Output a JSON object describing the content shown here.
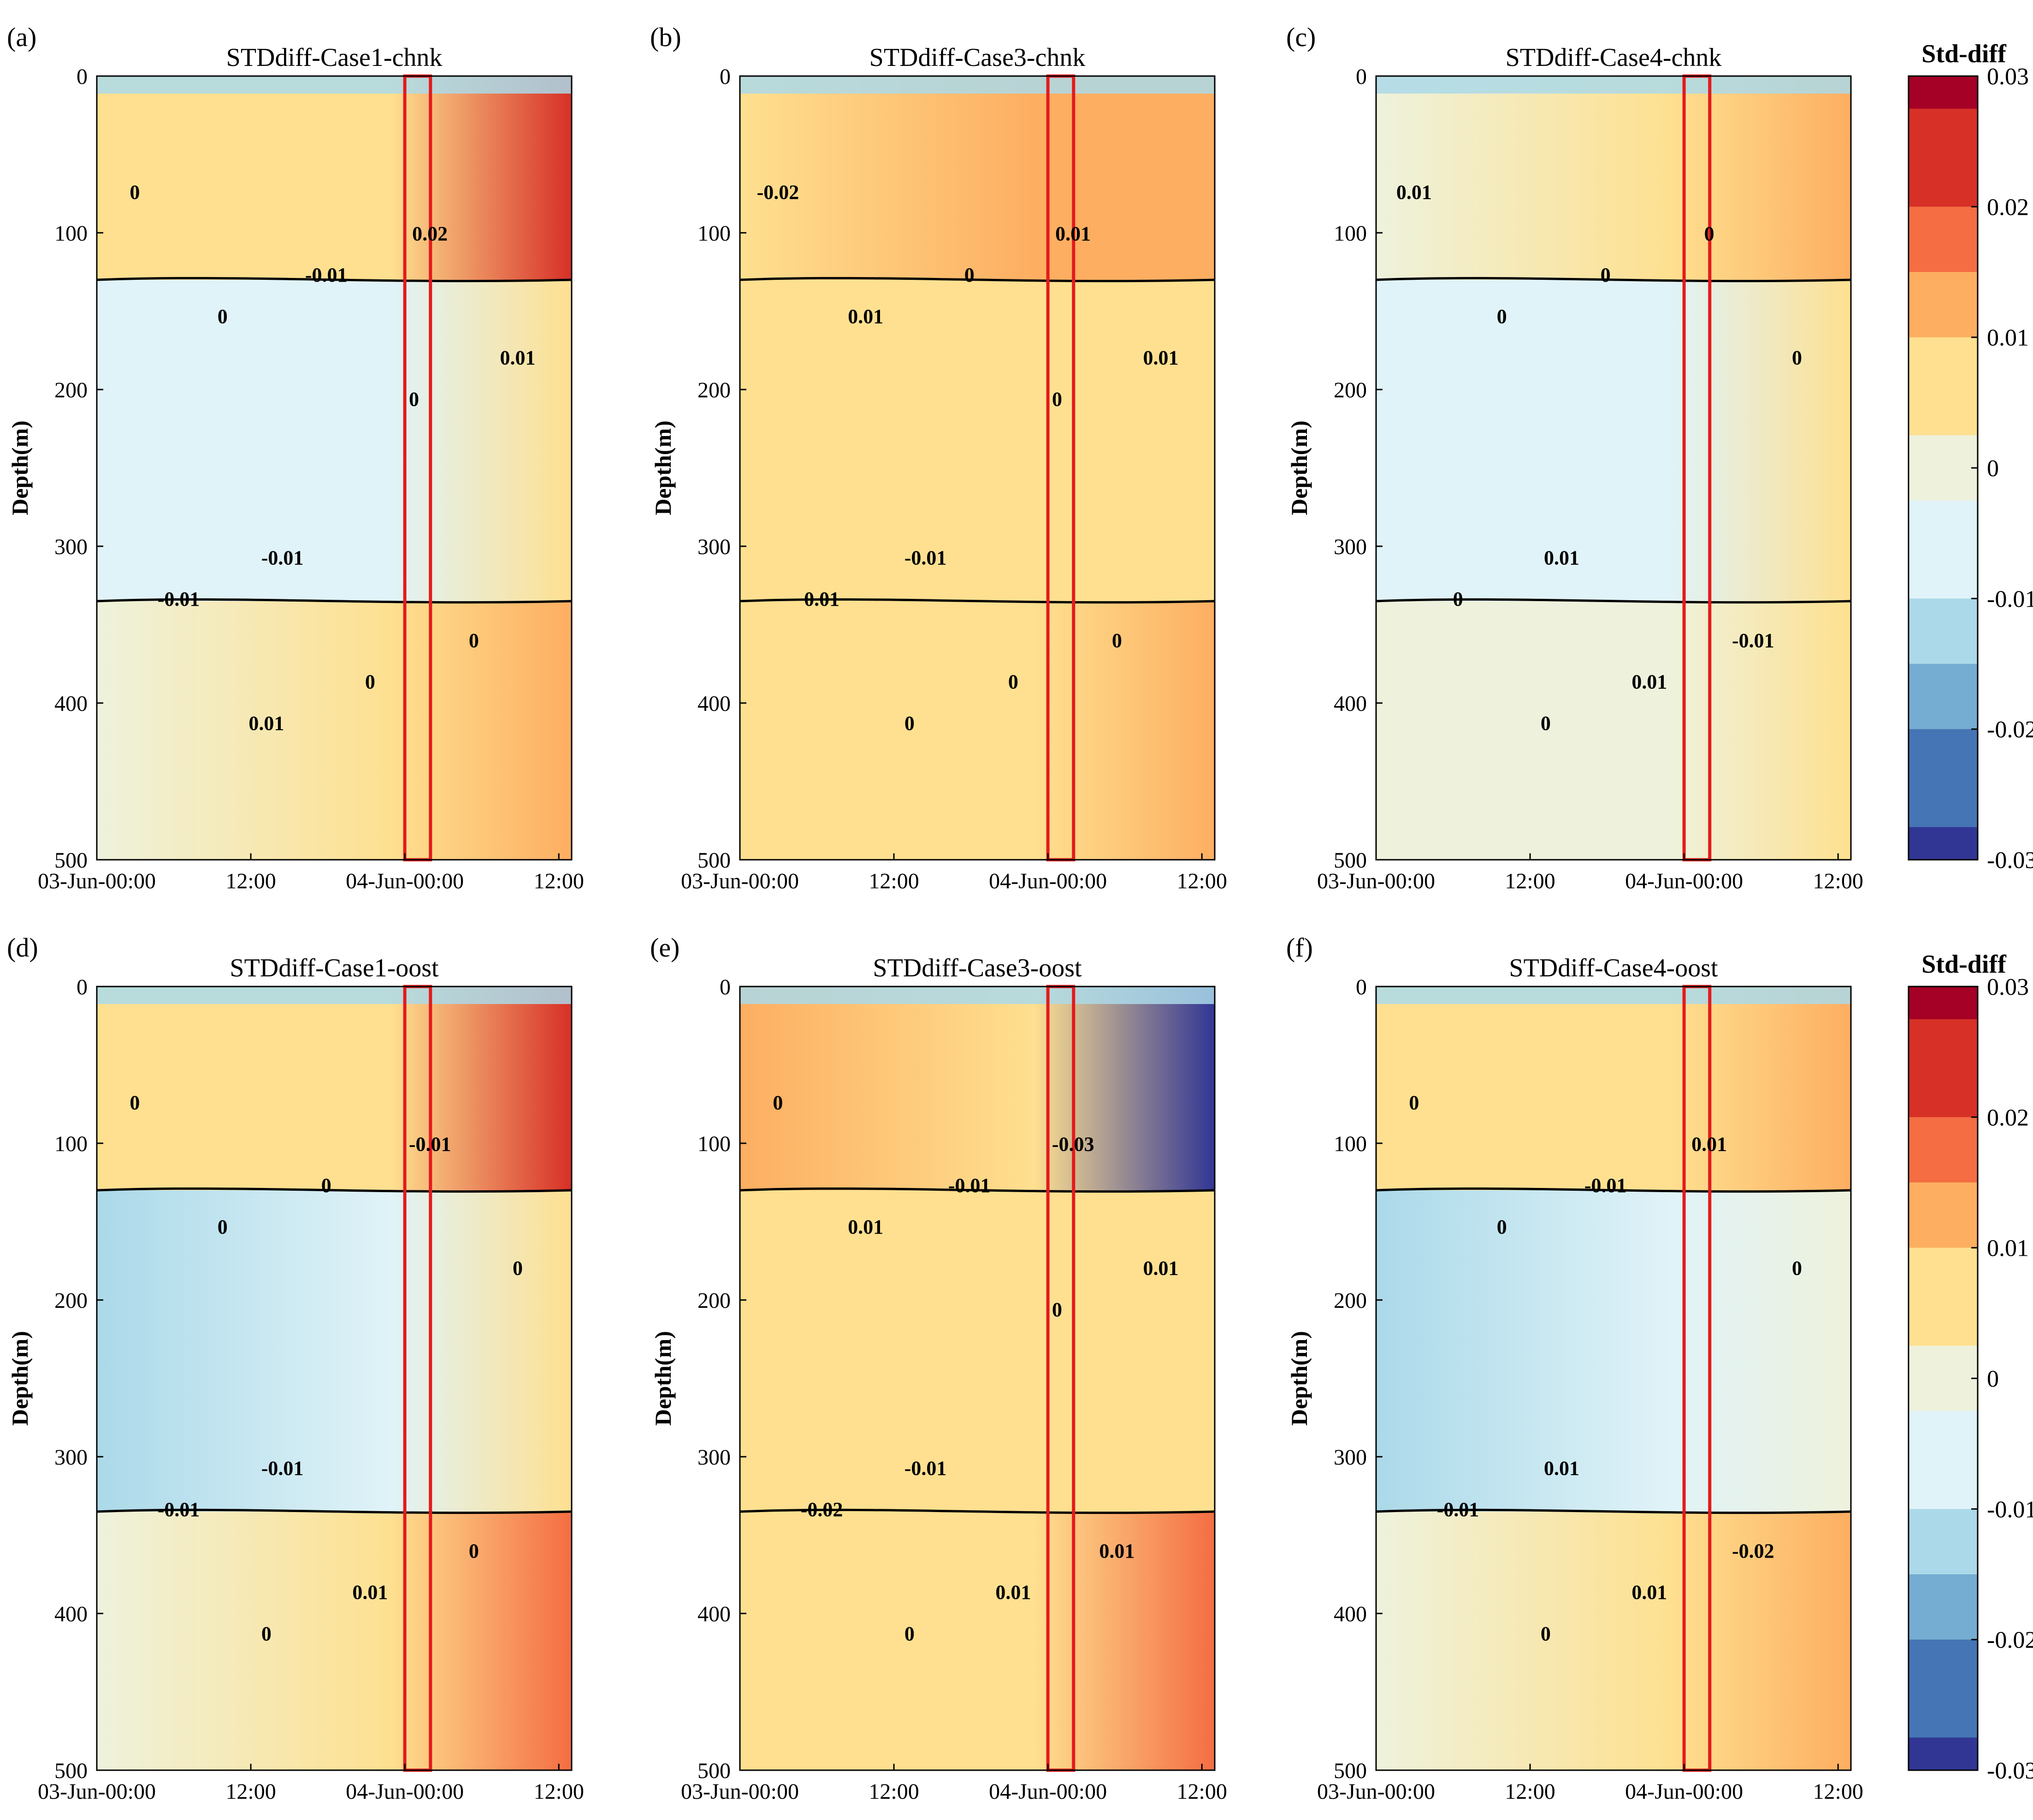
{
  "figure": {
    "colorbar_label": "Std-diff",
    "colorbar_ticks": [
      "0.03",
      "0.02",
      "0.01",
      "0",
      "-0.01",
      "-0.02",
      "-0.03"
    ],
    "ylabel": "Depth(m)",
    "highlight_color": "#e41a1c",
    "colormap": [
      "#313695",
      "#4575b4",
      "#74add1",
      "#abd9e9",
      "#e0f3f8",
      "#eef2dc",
      "#fee090",
      "#fdae61",
      "#f46d43",
      "#d73027",
      "#a50026"
    ]
  },
  "chart_data": [
    {
      "panel_letter": "(a)",
      "title": "STDdiff-Case1-chnk",
      "type": "heatmap",
      "xlabel": "",
      "ylabel": "Depth(m)",
      "x_ticks": [
        "03-Jun-00:00",
        "12:00",
        "04-Jun-00:00",
        "12:00"
      ],
      "y_ticks": [
        "0",
        "100",
        "200",
        "300",
        "400",
        "500"
      ],
      "ylim": [
        0,
        500
      ],
      "colorbar": {
        "label": "Std-diff",
        "range": [
          -0.03,
          0.03
        ]
      },
      "contour_labels": [
        "0",
        "-0.01",
        "0.02",
        "-0.01",
        "-0.01",
        "0",
        "0",
        "0",
        "0.01",
        "0.01",
        "0"
      ],
      "highlight_window": [
        "04-Jun-00:00",
        "04-Jun-02:00"
      ],
      "bands": [
        {
          "depth": [
            0,
            130
          ],
          "left": 0.003,
          "right": 0.022
        },
        {
          "depth": [
            130,
            335
          ],
          "left": -0.009,
          "right": 0.004
        },
        {
          "depth": [
            335,
            500
          ],
          "left": 0.001,
          "right": 0.014
        }
      ]
    },
    {
      "panel_letter": "(b)",
      "title": "STDdiff-Case3-chnk",
      "type": "heatmap",
      "xlabel": "",
      "ylabel": "Depth(m)",
      "x_ticks": [
        "03-Jun-00:00",
        "12:00",
        "04-Jun-00:00",
        "12:00"
      ],
      "y_ticks": [
        "0",
        "100",
        "200",
        "300",
        "400",
        "500"
      ],
      "ylim": [
        0,
        500
      ],
      "colorbar": {
        "label": "Std-diff",
        "range": [
          -0.03,
          0.03
        ]
      },
      "contour_labels": [
        "-0.02",
        "-0.01",
        "0.01",
        "0.01",
        "0",
        "0",
        "0.01",
        "0",
        "0.01",
        "0",
        "0"
      ],
      "highlight_window": [
        "04-Jun-00:00",
        "04-Jun-02:00"
      ],
      "bands": [
        {
          "depth": [
            0,
            130
          ],
          "left": 0.008,
          "right": 0.014
        },
        {
          "depth": [
            130,
            335
          ],
          "left": 0.004,
          "right": 0.006
        },
        {
          "depth": [
            335,
            500
          ],
          "left": 0.006,
          "right": 0.011
        }
      ]
    },
    {
      "panel_letter": "(c)",
      "title": "STDdiff-Case4-chnk",
      "type": "heatmap",
      "xlabel": "",
      "ylabel": "Depth(m)",
      "x_ticks": [
        "03-Jun-00:00",
        "12:00",
        "04-Jun-00:00",
        "12:00"
      ],
      "y_ticks": [
        "0",
        "100",
        "200",
        "300",
        "400",
        "500"
      ],
      "ylim": [
        0,
        500
      ],
      "colorbar": {
        "label": "Std-diff",
        "range": [
          -0.03,
          0.03
        ]
      },
      "contour_labels": [
        "0.01",
        "0.01",
        "0",
        "0",
        "0",
        "-0.01",
        "0",
        "0.01",
        "0",
        "0"
      ],
      "highlight_window": [
        "04-Jun-00:00",
        "04-Jun-02:00"
      ],
      "bands": [
        {
          "depth": [
            0,
            130
          ],
          "left": 0.002,
          "right": 0.014
        },
        {
          "depth": [
            130,
            335
          ],
          "left": -0.006,
          "right": 0.003
        },
        {
          "depth": [
            335,
            500
          ],
          "left": 0.001,
          "right": 0.008
        }
      ]
    },
    {
      "panel_letter": "(d)",
      "title": "STDdiff-Case1-oost",
      "type": "heatmap",
      "xlabel": "",
      "ylabel": "Depth(m)",
      "x_ticks": [
        "03-Jun-00:00",
        "12:00",
        "04-Jun-00:00",
        "12:00"
      ],
      "y_ticks": [
        "0",
        "100",
        "200",
        "300",
        "400",
        "500"
      ],
      "ylim": [
        0,
        500
      ],
      "colorbar": {
        "label": "Std-diff",
        "range": [
          -0.03,
          0.03
        ]
      },
      "contour_labels": [
        "0",
        "-0.01",
        "-0.01",
        "-0.01",
        "0",
        "0",
        "0",
        "0.01",
        "0",
        "0"
      ],
      "highlight_window": [
        "04-Jun-00:00",
        "04-Jun-02:00"
      ],
      "bands": [
        {
          "depth": [
            0,
            130
          ],
          "left": 0.003,
          "right": 0.022
        },
        {
          "depth": [
            130,
            335
          ],
          "left": -0.011,
          "right": 0.003
        },
        {
          "depth": [
            335,
            500
          ],
          "left": 0.001,
          "right": 0.016
        }
      ]
    },
    {
      "panel_letter": "(e)",
      "title": "STDdiff-Case3-oost",
      "type": "heatmap",
      "xlabel": "",
      "ylabel": "Depth(m)",
      "x_ticks": [
        "03-Jun-00:00",
        "12:00",
        "04-Jun-00:00",
        "12:00"
      ],
      "y_ticks": [
        "0",
        "100",
        "200",
        "300",
        "400",
        "500"
      ],
      "ylim": [
        0,
        500
      ],
      "colorbar": {
        "label": "Std-diff",
        "range": [
          -0.03,
          0.03
        ]
      },
      "contour_labels": [
        "0",
        "-0.01",
        "-0.03",
        "-0.02",
        "-0.01",
        "0.01",
        "0.01",
        "0.01",
        "0.01",
        "0",
        "0"
      ],
      "highlight_window": [
        "04-Jun-00:00",
        "04-Jun-02:00"
      ],
      "bands": [
        {
          "depth": [
            0,
            130
          ],
          "left": 0.011,
          "right": -0.028
        },
        {
          "depth": [
            130,
            335
          ],
          "left": 0.004,
          "right": 0.008
        },
        {
          "depth": [
            335,
            500
          ],
          "left": 0.005,
          "right": 0.02
        }
      ]
    },
    {
      "panel_letter": "(f)",
      "title": "STDdiff-Case4-oost",
      "type": "heatmap",
      "xlabel": "",
      "ylabel": "Depth(m)",
      "x_ticks": [
        "03-Jun-00:00",
        "12:00",
        "04-Jun-00:00",
        "12:00"
      ],
      "y_ticks": [
        "0",
        "100",
        "200",
        "300",
        "400",
        "500"
      ],
      "ylim": [
        0,
        500
      ],
      "colorbar": {
        "label": "Std-diff",
        "range": [
          -0.03,
          0.03
        ]
      },
      "contour_labels": [
        "0",
        "0.01",
        "0.01",
        "-0.01",
        "-0.01",
        "-0.02",
        "0",
        "0.01",
        "0",
        "0"
      ],
      "highlight_window": [
        "04-Jun-00:00",
        "04-Jun-02:00"
      ],
      "bands": [
        {
          "depth": [
            0,
            130
          ],
          "left": 0.003,
          "right": 0.013
        },
        {
          "depth": [
            130,
            335
          ],
          "left": -0.011,
          "right": 0.002
        },
        {
          "depth": [
            335,
            500
          ],
          "left": 0.002,
          "right": 0.012
        }
      ]
    }
  ]
}
